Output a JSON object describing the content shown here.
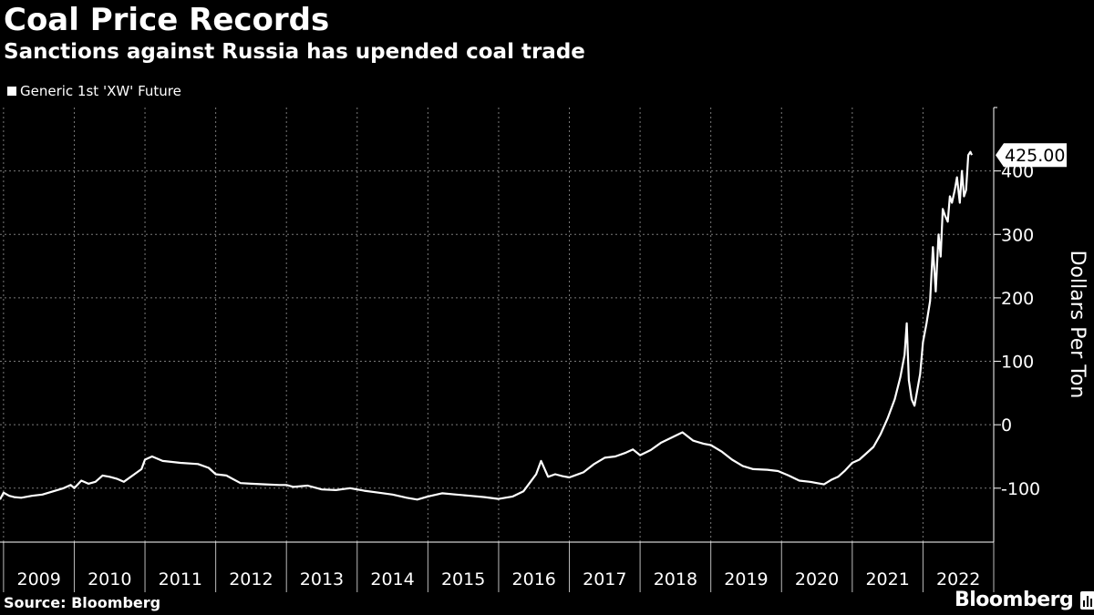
{
  "header": {
    "title": "Coal Price Records",
    "subtitle": "Sanctions against Russia has upended coal trade"
  },
  "footer": {
    "source": "Source: Bloomberg",
    "brand": "Bloomberg"
  },
  "colors": {
    "background": "#000000",
    "line": "#ffffff",
    "grid": "#7a7a7a"
  },
  "chart_data": {
    "type": "line",
    "title": "Coal Price Records",
    "subtitle": "Sanctions against Russia has upended coal trade",
    "xlabel": "",
    "ylabel": "Dollars Per Ton",
    "ylim": [
      -185,
      500
    ],
    "xlim": [
      2008.95,
      2023.0
    ],
    "y_ticks": [
      -100,
      0,
      100,
      200,
      300,
      400
    ],
    "y_tick_labels": [
      "-100",
      "0",
      "100",
      "200",
      "300",
      "400"
    ],
    "x_tick_labels": [
      "2009",
      "2010",
      "2011",
      "2012",
      "2013",
      "2014",
      "2015",
      "2016",
      "2017",
      "2018",
      "2019",
      "2020",
      "2021",
      "2022"
    ],
    "grid": true,
    "legend_position": "top-left",
    "last_value_label": "425.00",
    "series": [
      {
        "name": "Generic 1st 'XW' Future",
        "x": [
          2008.95,
          2009.0,
          2009.08,
          2009.15,
          2009.25,
          2009.4,
          2009.55,
          2009.7,
          2009.85,
          2009.95,
          2010.0,
          2010.1,
          2010.2,
          2010.3,
          2010.4,
          2010.5,
          2010.6,
          2010.7,
          2010.85,
          2010.95,
          2011.0,
          2011.1,
          2011.25,
          2011.5,
          2011.75,
          2011.9,
          2012.0,
          2012.15,
          2012.35,
          2012.5,
          2012.7,
          2012.9,
          2013.0,
          2013.1,
          2013.3,
          2013.5,
          2013.7,
          2013.9,
          2014.1,
          2014.3,
          2014.5,
          2014.7,
          2014.85,
          2015.0,
          2015.2,
          2015.4,
          2015.6,
          2015.8,
          2016.0,
          2016.2,
          2016.35,
          2016.45,
          2016.53,
          2016.6,
          2016.7,
          2016.8,
          2016.9,
          2017.0,
          2017.2,
          2017.35,
          2017.5,
          2017.65,
          2017.8,
          2017.9,
          2018.0,
          2018.15,
          2018.3,
          2018.45,
          2018.6,
          2018.75,
          2018.9,
          2019.0,
          2019.15,
          2019.3,
          2019.45,
          2019.6,
          2019.8,
          2019.95,
          2020.1,
          2020.25,
          2020.4,
          2020.5,
          2020.6,
          2020.7,
          2020.8,
          2020.9,
          2021.0,
          2021.1,
          2021.2,
          2021.3,
          2021.4,
          2021.5,
          2021.6,
          2021.68,
          2021.74,
          2021.77,
          2021.8,
          2021.84,
          2021.88,
          2021.92,
          2021.96,
          2022.0,
          2022.05,
          2022.1,
          2022.14,
          2022.18,
          2022.22,
          2022.25,
          2022.28,
          2022.31,
          2022.35,
          2022.38,
          2022.41,
          2022.45,
          2022.48,
          2022.52,
          2022.55,
          2022.58,
          2022.61,
          2022.64,
          2022.67,
          2022.69
        ],
        "y": [
          -118,
          -107,
          -112,
          -114,
          -115,
          -112,
          -110,
          -105,
          -100,
          -95,
          -100,
          -88,
          -93,
          -90,
          -80,
          -82,
          -85,
          -90,
          -78,
          -70,
          -55,
          -50,
          -57,
          -60,
          -62,
          -68,
          -78,
          -80,
          -92,
          -93,
          -94,
          -95,
          -95,
          -98,
          -96,
          -102,
          -103,
          -100,
          -104,
          -107,
          -110,
          -115,
          -118,
          -113,
          -108,
          -110,
          -112,
          -114,
          -117,
          -113,
          -105,
          -90,
          -78,
          -57,
          -82,
          -78,
          -81,
          -83,
          -75,
          -62,
          -52,
          -50,
          -44,
          -39,
          -48,
          -40,
          -28,
          -20,
          -12,
          -25,
          -30,
          -32,
          -42,
          -55,
          -65,
          -70,
          -71,
          -73,
          -80,
          -88,
          -90,
          -92,
          -94,
          -87,
          -82,
          -72,
          -60,
          -55,
          -45,
          -35,
          -15,
          10,
          40,
          75,
          110,
          160,
          70,
          40,
          30,
          55,
          80,
          130,
          160,
          195,
          280,
          210,
          300,
          265,
          340,
          330,
          320,
          360,
          350,
          370,
          390,
          350,
          400,
          360,
          370,
          425,
          430,
          425
        ]
      }
    ]
  }
}
